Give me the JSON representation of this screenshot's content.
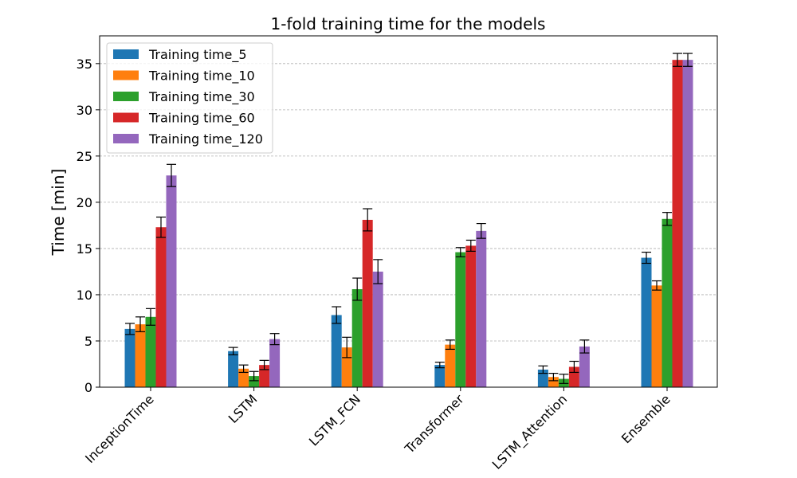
{
  "chart_data": {
    "type": "bar",
    "title": "1-fold training time for the models",
    "xlabel": "",
    "ylabel": "Time [min]",
    "ylim": [
      0,
      38
    ],
    "yticks": [
      0,
      5,
      10,
      15,
      20,
      25,
      30,
      35
    ],
    "grid": "y",
    "legend_position": "top-left",
    "categories": [
      "InceptionTime",
      "LSTM",
      "LSTM_FCN",
      "Transformer",
      "LSTM_Attention",
      "Ensemble"
    ],
    "series": [
      {
        "name": "Training time_5",
        "color": "#1f77b4",
        "values": [
          6.3,
          3.9,
          7.8,
          2.4,
          1.9,
          14.0
        ],
        "errors": [
          0.6,
          0.4,
          0.9,
          0.3,
          0.4,
          0.6
        ]
      },
      {
        "name": "Training time_10",
        "color": "#ff7f0e",
        "values": [
          6.8,
          2.0,
          4.3,
          4.6,
          1.1,
          11.0
        ],
        "errors": [
          0.8,
          0.4,
          1.1,
          0.5,
          0.4,
          0.5
        ]
      },
      {
        "name": "Training time_30",
        "color": "#2ca02c",
        "values": [
          7.6,
          1.2,
          10.6,
          14.6,
          0.9,
          18.2
        ],
        "errors": [
          0.9,
          0.5,
          1.2,
          0.5,
          0.5,
          0.7
        ]
      },
      {
        "name": "Training time_60",
        "color": "#d62728",
        "values": [
          17.3,
          2.4,
          18.1,
          15.3,
          2.2,
          35.4
        ],
        "errors": [
          1.1,
          0.5,
          1.2,
          0.6,
          0.6,
          0.7
        ]
      },
      {
        "name": "Training time_120",
        "color": "#9467bd",
        "values": [
          22.9,
          5.2,
          12.5,
          16.9,
          4.4,
          35.4
        ],
        "errors": [
          1.2,
          0.6,
          1.3,
          0.8,
          0.7,
          0.7
        ]
      }
    ]
  }
}
